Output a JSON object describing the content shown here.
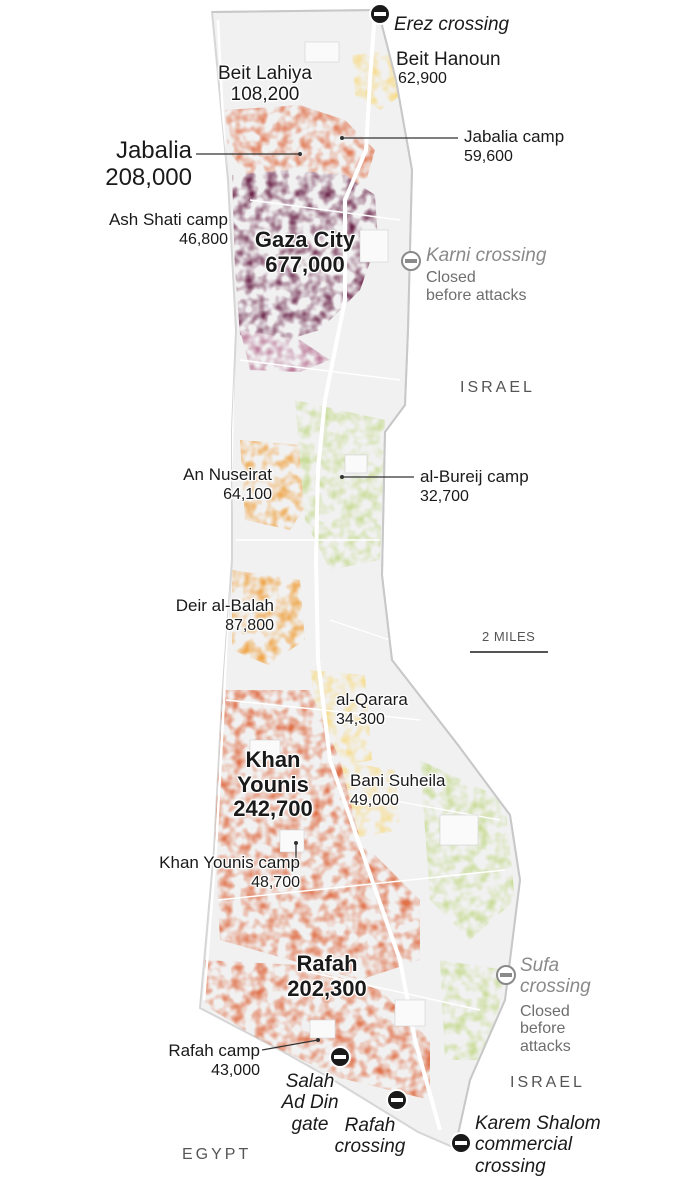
{
  "places": {
    "beit_lahiya": {
      "name": "Beit Lahiya",
      "pop": "108,200"
    },
    "beit_hanoun": {
      "name": "Beit Hanoun",
      "pop": "62,900"
    },
    "jabalia": {
      "name": "Jabalia",
      "pop": "208,000"
    },
    "jabalia_camp": {
      "name": "Jabalia camp",
      "pop": "59,600"
    },
    "ash_shati": {
      "name": "Ash Shati camp",
      "pop": "46,800"
    },
    "gaza_city": {
      "name": "Gaza City",
      "pop": "677,000"
    },
    "an_nuseirat": {
      "name": "An Nuseirat",
      "pop": "64,100"
    },
    "al_bureij": {
      "name": "al-Bureij camp",
      "pop": "32,700"
    },
    "deir_al_balah": {
      "name": "Deir al-Balah",
      "pop": "87,800"
    },
    "al_qarara": {
      "name": "al-Qarara",
      "pop": "34,300"
    },
    "khan_younis": {
      "name_line1": "Khan",
      "name_line2": "Younis",
      "pop": "242,700"
    },
    "bani_suheila": {
      "name": "Bani Suheila",
      "pop": "49,000"
    },
    "khan_younis_camp": {
      "name": "Khan Younis camp",
      "pop": "48,700"
    },
    "rafah": {
      "name": "Rafah",
      "pop": "202,300"
    },
    "rafah_camp": {
      "name": "Rafah camp",
      "pop": "43,000"
    }
  },
  "crossings": {
    "erez": {
      "name": "Erez crossing"
    },
    "karni": {
      "name": "Karni crossing",
      "note_line1": "Closed",
      "note_line2": "before attacks"
    },
    "sufa": {
      "name_line1": "Sufa",
      "name_line2": "crossing",
      "note_line1": "Closed",
      "note_line2": "before",
      "note_line3": "attacks"
    },
    "salah": {
      "line1": "Salah",
      "line2": "Ad Din",
      "line3": "gate"
    },
    "rafah": {
      "line1": "Rafah",
      "line2": "crossing"
    },
    "karem": {
      "line1": "Karem Shalom",
      "line2": "commercial",
      "line3": "crossing"
    }
  },
  "countries": {
    "israel_north": "ISRAEL",
    "israel_south": "ISRAEL",
    "egypt": "EGYPT"
  },
  "scale_bar": {
    "label": "2 MILES"
  },
  "colors": {
    "land": "#f1f1f1",
    "land_edge": "#d9d9d9",
    "roads": "#ffffff",
    "very_dense": "#6e2a4e",
    "dense": "#e0714a",
    "medium": "#f0a548",
    "low": "#f7dc8a",
    "sparse": "#c9dc98",
    "crossing_fill": "#1a1a1a"
  }
}
